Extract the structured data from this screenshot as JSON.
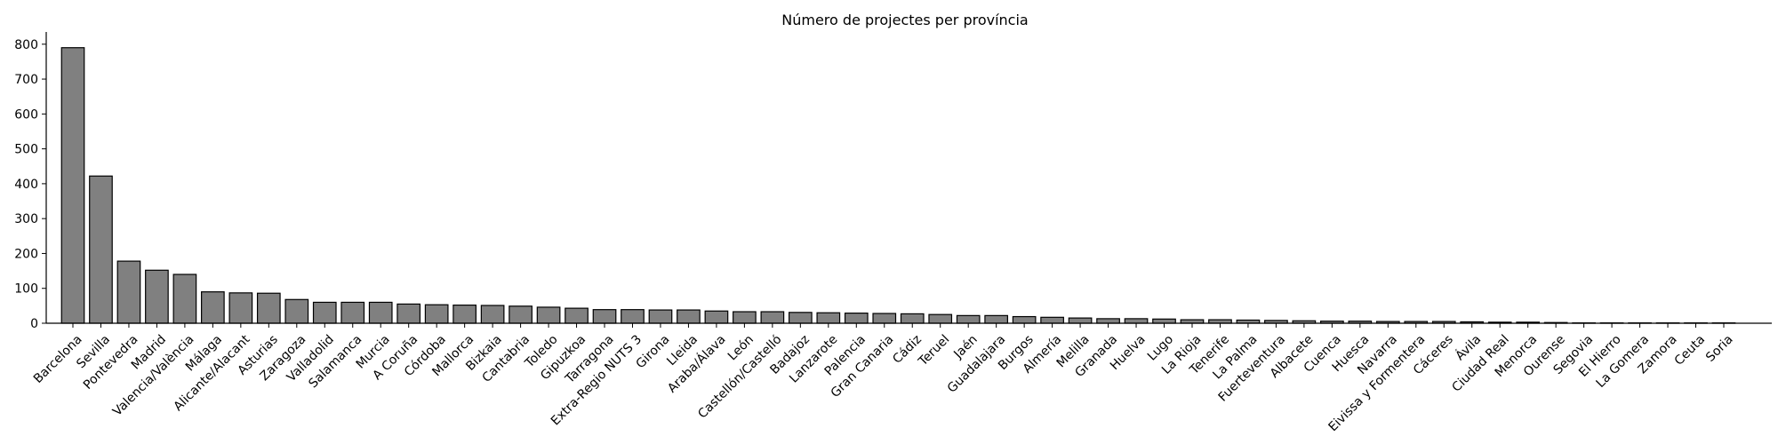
{
  "chart_data": {
    "type": "bar",
    "title": "Número de projectes per província",
    "xlabel": "",
    "ylabel": "",
    "ylim": [
      0,
      830
    ],
    "yticks": [
      0,
      100,
      200,
      300,
      400,
      500,
      600,
      700,
      800
    ],
    "grid": false,
    "bar_color": "#808080",
    "edge_color": "#000000",
    "categories": [
      "Barcelona",
      "Sevilla",
      "Pontevedra",
      "Madrid",
      "Valencia/València",
      "Málaga",
      "Alicante/Alacant",
      "Asturias",
      "Zaragoza",
      "Valladolid",
      "Salamanca",
      "Murcia",
      "A Coruña",
      "Córdoba",
      "Mallorca",
      "Bizkaia",
      "Cantabria",
      "Toledo",
      "Gipuzkoa",
      "Tarragona",
      "Extra-Regio NUTS 3",
      "Girona",
      "Lleida",
      "Araba/Álava",
      "León",
      "Castellón/Castelló",
      "Badajoz",
      "Lanzarote",
      "Palencia",
      "Gran Canaria",
      "Cádiz",
      "Teruel",
      "Jaén",
      "Guadalajara",
      "Burgos",
      "Almería",
      "Melilla",
      "Granada",
      "Huelva",
      "Lugo",
      "La Rioja",
      "Tenerife",
      "La Palma",
      "Fuerteventura",
      "Albacete",
      "Cuenca",
      "Huesca",
      "Navarra",
      "Eivissa y Formentera",
      "Cáceres",
      "Ávila",
      "Ciudad Real",
      "Menorca",
      "Ourense",
      "Segovia",
      "El Hierro",
      "La Gomera",
      "Zamora",
      "Ceuta",
      "Soria"
    ],
    "values": [
      790,
      422,
      178,
      152,
      140,
      90,
      87,
      86,
      68,
      60,
      60,
      60,
      55,
      53,
      52,
      51,
      49,
      46,
      43,
      39,
      39,
      38,
      38,
      35,
      33,
      33,
      31,
      30,
      29,
      28,
      27,
      25,
      22,
      22,
      19,
      17,
      15,
      13,
      13,
      12,
      10,
      10,
      9,
      8,
      7,
      6,
      6,
      5,
      5,
      5,
      4,
      3,
      3,
      2,
      1,
      1,
      1,
      1,
      1,
      1
    ]
  }
}
